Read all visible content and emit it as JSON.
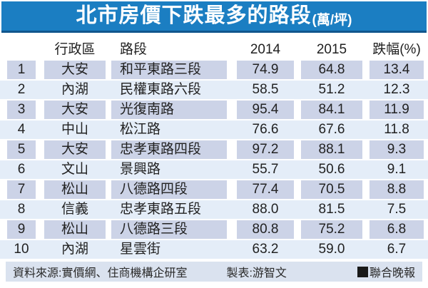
{
  "title": {
    "main": "北市房價下跌最多的路段",
    "unit": "(萬/坪)"
  },
  "table": {
    "headers": {
      "district": "行政區",
      "road": "路段",
      "y2014": "2014",
      "y2015": "2015",
      "drop": "跌幅(%)"
    },
    "rows": [
      {
        "rank": "1",
        "district": "大安",
        "road": "和平東路三段",
        "y2014": "74.9",
        "y2015": "64.8",
        "drop": "13.4"
      },
      {
        "rank": "2",
        "district": "內湖",
        "road": "民權東路六段",
        "y2014": "58.5",
        "y2015": "51.2",
        "drop": "12.3"
      },
      {
        "rank": "3",
        "district": "大安",
        "road": "光復南路",
        "y2014": "95.4",
        "y2015": "84.1",
        "drop": "11.9"
      },
      {
        "rank": "4",
        "district": "中山",
        "road": "松江路",
        "y2014": "76.6",
        "y2015": "67.6",
        "drop": "11.8"
      },
      {
        "rank": "5",
        "district": "大安",
        "road": "忠孝東路四段",
        "y2014": "97.2",
        "y2015": "88.1",
        "drop": "9.3"
      },
      {
        "rank": "6",
        "district": "文山",
        "road": "景興路",
        "y2014": "55.7",
        "y2015": "50.6",
        "drop": "9.1"
      },
      {
        "rank": "7",
        "district": "松山",
        "road": "八德路四段",
        "y2014": "77.4",
        "y2015": "70.5",
        "drop": "8.8"
      },
      {
        "rank": "8",
        "district": "信義",
        "road": "忠孝東路五段",
        "y2014": "88.0",
        "y2015": "81.5",
        "drop": "7.5"
      },
      {
        "rank": "9",
        "district": "松山",
        "road": "八德路三段",
        "y2014": "80.8",
        "y2015": "75.2",
        "drop": "6.8"
      },
      {
        "rank": "10",
        "district": "內湖",
        "road": "星雲街",
        "y2014": "63.2",
        "y2015": "59.0",
        "drop": "6.7"
      }
    ]
  },
  "footer": {
    "source": "資料來源:實價網、住商機構企研室",
    "credit": "製表:游智文",
    "brand": "聯合晚報",
    "brand_icon": "black-square"
  },
  "colors": {
    "title_bg": "#1b7ec2",
    "title_border": "#10568d",
    "title_text": "#ffffff",
    "odd_cell_bg": "#ccd3e7",
    "even_row_bg": "#e4edf8",
    "footer_bg": "#dae2ef",
    "text": "#222222"
  },
  "chart_data": {
    "type": "table",
    "title": "北市房價下跌最多的路段",
    "unit": "萬/坪",
    "columns": [
      "",
      "行政區",
      "路段",
      "2014",
      "2015",
      "跌幅(%)"
    ],
    "rows": [
      [
        1,
        "大安",
        "和平東路三段",
        74.9,
        64.8,
        13.4
      ],
      [
        2,
        "內湖",
        "民權東路六段",
        58.5,
        51.2,
        12.3
      ],
      [
        3,
        "大安",
        "光復南路",
        95.4,
        84.1,
        11.9
      ],
      [
        4,
        "中山",
        "松江路",
        76.6,
        67.6,
        11.8
      ],
      [
        5,
        "大安",
        "忠孝東路四段",
        97.2,
        88.1,
        9.3
      ],
      [
        6,
        "文山",
        "景興路",
        55.7,
        50.6,
        9.1
      ],
      [
        7,
        "松山",
        "八德路四段",
        77.4,
        70.5,
        8.8
      ],
      [
        8,
        "信義",
        "忠孝東路五段",
        88.0,
        81.5,
        7.5
      ],
      [
        9,
        "松山",
        "八德路三段",
        80.8,
        75.2,
        6.8
      ],
      [
        10,
        "內湖",
        "星雲街",
        63.2,
        59.0,
        6.7
      ]
    ]
  }
}
